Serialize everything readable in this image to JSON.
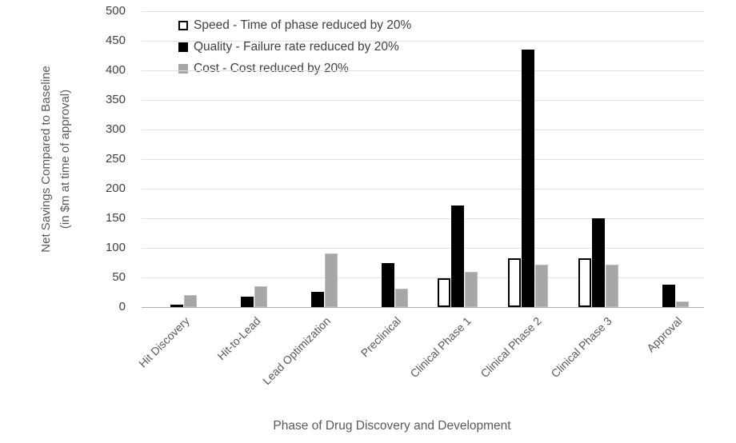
{
  "chart_data": {
    "type": "bar",
    "title": "",
    "xlabel": "Phase of Drug Discovery and Development",
    "ylabel_line1": "Net Savings Compared to Baseline",
    "ylabel_line2": "(in $m at time of approval)",
    "ylim": [
      0,
      500
    ],
    "yticks": [
      0,
      50,
      100,
      150,
      200,
      250,
      300,
      350,
      400,
      450,
      500
    ],
    "grid": true,
    "legend_position": "top-left",
    "categories": [
      "Hit Discovery",
      "Hit-to-Lead",
      "Lead Optimization",
      "Preclinical",
      "Clinical Phase 1",
      "Clinical Phase 2",
      "Clinical Phase 3",
      "Approval"
    ],
    "series": [
      {
        "key": "speed",
        "name": "Speed - Time of phase reduced by 20%",
        "fill": "#ffffff",
        "border": "#000000",
        "values": [
          0,
          0,
          0,
          0,
          48,
          82,
          82,
          0
        ]
      },
      {
        "key": "quality",
        "name": "Quality - Failure rate reduced by 20%",
        "fill": "#000000",
        "border": "#4d4d4d",
        "values": [
          4,
          17,
          25,
          74,
          172,
          435,
          150,
          38
        ]
      },
      {
        "key": "cost",
        "name": "Cost - Cost reduced by 20%",
        "fill": "#a6a6a6",
        "border": "#bdbdbd",
        "values": [
          20,
          35,
          90,
          31,
          59,
          72,
          71,
          10
        ]
      }
    ],
    "colors": {
      "gridline": "#e0e0e0",
      "axis_line": "#adadad",
      "tick_text": "#404040",
      "title_text": "#595959"
    }
  }
}
